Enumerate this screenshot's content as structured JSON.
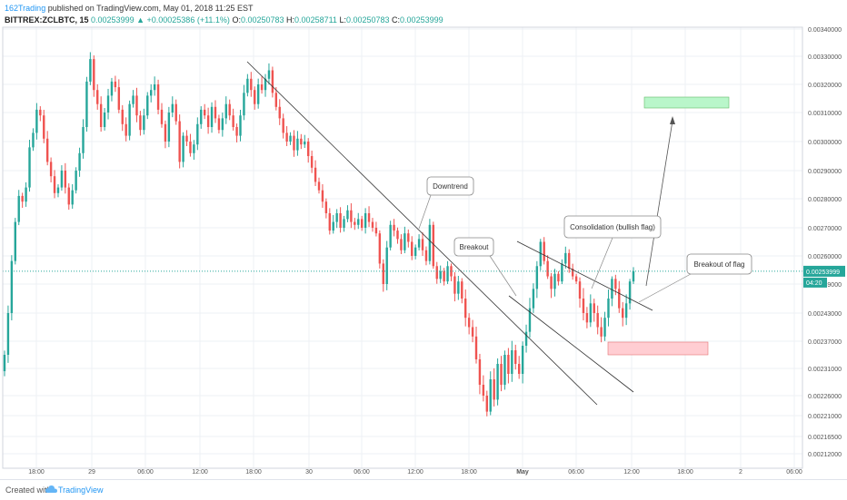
{
  "header": {
    "author": "162Trading",
    "published_text": " published on TradingView.com, May 01, 2018 11:25 EST",
    "symbol": "BITTREX:ZCLBTC, 15",
    "price": "0.00253999",
    "change": "▲ +0.00025386 (+11.1%)",
    "o_label": "O:",
    "o_value": "0.00250783",
    "h_label": "H:",
    "h_value": "0.00258711",
    "l_label": "L:",
    "l_value": "0.00250783",
    "c_label": "C:",
    "c_value": "0.00253999"
  },
  "footer": {
    "created_with": "Created with",
    "brand": "TradingView",
    "icon": "tradingview-cloud-icon"
  },
  "colors": {
    "up": "#26a69a",
    "down": "#ef5350",
    "accent": "#2196f3",
    "target_zone": "#b9f6ca",
    "stop_zone": "#ffcdd2"
  },
  "chart_data": {
    "type": "candlestick",
    "y_axis_ticks": [
      "0.00340000",
      "0.00330000",
      "0.00320000",
      "0.00310000",
      "0.00300000",
      "0.00290000",
      "0.00280000",
      "0.00270000",
      "0.00260000",
      "0.00249000",
      "0.00243000",
      "0.00237000",
      "0.00231000",
      "0.00226000",
      "0.00221000",
      "0.00216500",
      "0.00212000"
    ],
    "x_axis_ticks": [
      "18:00",
      "29",
      "06:00",
      "12:00",
      "18:00",
      "30",
      "06:00",
      "12:00",
      "18:00",
      "May",
      "06:00",
      "12:00",
      "18:00",
      "2",
      "06:00"
    ],
    "bold_x_ticks": [
      "May"
    ],
    "last_price_label": "0.00253999",
    "countdown_label": "04:20",
    "annotations": [
      {
        "text": "Downtrend"
      },
      {
        "text": "Breakout"
      },
      {
        "text": "Consolidation (bullish flag)"
      },
      {
        "text": "Breakout of flag"
      }
    ],
    "zones": [
      {
        "name": "target",
        "y_range": [
          0.00312,
          0.00315
        ]
      },
      {
        "name": "stop",
        "y_range": [
          0.00238,
          0.00241
        ]
      }
    ],
    "close_series": [
      0.00234,
      0.00243,
      0.00258,
      0.00272,
      0.00281,
      0.00279,
      0.00284,
      0.00298,
      0.00303,
      0.00311,
      0.00309,
      0.00301,
      0.00293,
      0.00288,
      0.00282,
      0.00284,
      0.0029,
      0.00284,
      0.00278,
      0.00283,
      0.0029,
      0.00296,
      0.00305,
      0.00321,
      0.00329,
      0.00318,
      0.00313,
      0.00305,
      0.0031,
      0.00316,
      0.00321,
      0.00319,
      0.00311,
      0.00306,
      0.00302,
      0.00313,
      0.00316,
      0.00309,
      0.00304,
      0.00309,
      0.00316,
      0.00318,
      0.0032,
      0.00311,
      0.00306,
      0.003,
      0.0031,
      0.00313,
      0.00307,
      0.00293,
      0.00302,
      0.003,
      0.00296,
      0.00299,
      0.00306,
      0.00311,
      0.00309,
      0.00305,
      0.00312,
      0.00308,
      0.00304,
      0.00308,
      0.00313,
      0.00309,
      0.00305,
      0.00302,
      0.00309,
      0.00317,
      0.00322,
      0.00318,
      0.00313,
      0.0032,
      0.00318,
      0.00322,
      0.00325,
      0.00317,
      0.00312,
      0.00308,
      0.00303,
      0.003,
      0.00302,
      0.00297,
      0.00301,
      0.00299,
      0.003,
      0.00295,
      0.00291,
      0.00286,
      0.00283,
      0.00279,
      0.00275,
      0.00269,
      0.00272,
      0.00275,
      0.0027,
      0.00273,
      0.00276,
      0.00272,
      0.00271,
      0.00273,
      0.0027,
      0.00275,
      0.00272,
      0.0027,
      0.00268,
      0.00257,
      0.00249,
      0.00263,
      0.00271,
      0.00269,
      0.00266,
      0.00262,
      0.00268,
      0.00265,
      0.0026,
      0.00263,
      0.00266,
      0.00262,
      0.00258,
      0.00271,
      0.00256,
      0.00251,
      0.00254,
      0.0025,
      0.00256,
      0.00252,
      0.00247,
      0.0025,
      0.00246,
      0.00242,
      0.0024,
      0.00238,
      0.00233,
      0.00228,
      0.00226,
      0.00222,
      0.00229,
      0.00225,
      0.00232,
      0.00228,
      0.00234,
      0.0023,
      0.00235,
      0.00232,
      0.0023,
      0.00236,
      0.00239,
      0.00244,
      0.00248,
      0.00256,
      0.00265,
      0.00258,
      0.00252,
      0.00248,
      0.00253,
      0.0025,
      0.00257,
      0.00261,
      0.00255,
      0.00252,
      0.0025,
      0.00246,
      0.00243,
      0.00241,
      0.00245,
      0.00243,
      0.0024,
      0.00238,
      0.00242,
      0.00246,
      0.00251,
      0.00248,
      0.00244,
      0.00242,
      0.00245,
      0.0025,
      0.00254
    ]
  }
}
